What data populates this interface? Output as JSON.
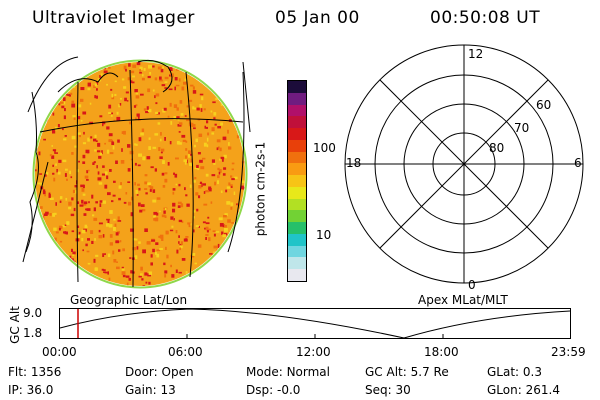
{
  "header": {
    "instrument": "Ultraviolet Imager",
    "date": "05 Jan 00",
    "time": "00:50:08 UT"
  },
  "colorbar": {
    "label": "photon cm-2s-1",
    "ticks": [
      "100",
      "10"
    ],
    "colors": [
      "#e8e8ef",
      "#bfe6ea",
      "#6fd6e0",
      "#20c4c8",
      "#26c06a",
      "#72d234",
      "#b2e023",
      "#e8e81a",
      "#f7c416",
      "#f99b12",
      "#f0700e",
      "#e8400a",
      "#d81818",
      "#c0103a",
      "#b0106a",
      "#701c80",
      "#1c0c3a"
    ]
  },
  "map": {
    "left_caption": "Geographic Lat/Lon",
    "right_caption": "Apex MLat/MLT"
  },
  "polar": {
    "mlt_labels": [
      "12",
      "18",
      "6",
      "0"
    ],
    "lat_labels": [
      "60",
      "70",
      "80"
    ]
  },
  "altitude_plot": {
    "ylabel": "GC Alt",
    "yticks": [
      "9.0",
      "1.8"
    ],
    "xticks": [
      "00:00",
      "06:00",
      "12:00",
      "18:00",
      "23:59"
    ]
  },
  "status": {
    "flt_label": "Flt:",
    "flt_value": "1356",
    "ip_label": "IP:",
    "ip_value": "36.0",
    "door_label": "Door:",
    "door_value": "Open",
    "gain_label": "Gain:",
    "gain_value": "13",
    "mode_label": "Mode:",
    "mode_value": "Normal",
    "dsp_label": "Dsp:",
    "dsp_value": "-0.0",
    "gcalt_label": "GC Alt:",
    "gcalt_value": "5.7 Re",
    "seq_label": "Seq:",
    "seq_value": "30",
    "glat_label": "GLat:",
    "glat_value": "0.3",
    "glon_label": "GLon:",
    "glon_value": "261.4"
  },
  "colors": {
    "disk_base": "#f4a21a",
    "disk_speckle_high": "#d81818",
    "disk_speckle_low": "#f7d11e",
    "disk_rim": "#8fd84a",
    "time_marker": "#cc0000"
  }
}
